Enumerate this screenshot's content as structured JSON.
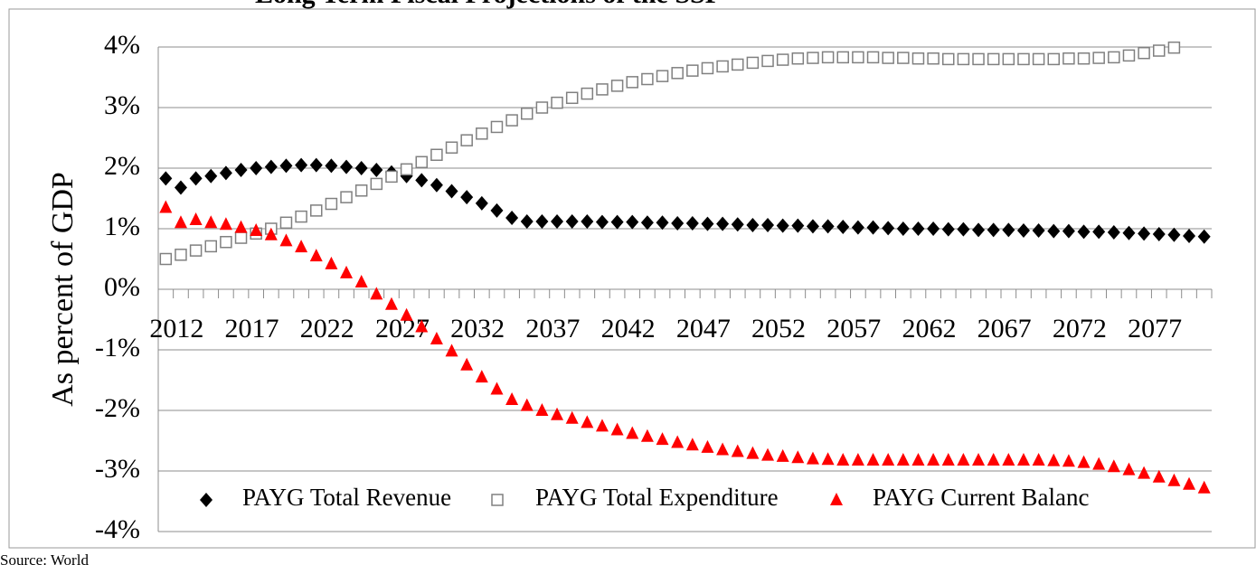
{
  "chart_data": {
    "type": "line",
    "title": "Long Term Fiscal Projections of the SSF",
    "source": "Source: World",
    "ylabel": "As percent of GDP",
    "categories": [
      "2012",
      null,
      null,
      null,
      null,
      "2017",
      null,
      null,
      null,
      null,
      "2022",
      null,
      null,
      null,
      null,
      "2027",
      null,
      null,
      null,
      null,
      "2032",
      null,
      null,
      null,
      null,
      "2037",
      null,
      null,
      null,
      null,
      "2042",
      null,
      null,
      null,
      null,
      "2047",
      null,
      null,
      null,
      null,
      "2052",
      null,
      null,
      null,
      null,
      "2057",
      null,
      null,
      null,
      null,
      "2062",
      null,
      null,
      null,
      null,
      "2067",
      null,
      null,
      null,
      null,
      "2072",
      null,
      null,
      null,
      null,
      "2077",
      null,
      null,
      null,
      null
    ],
    "ylim": [
      -4,
      4
    ],
    "yticks": [
      {
        "value": -4,
        "label": "-4%"
      },
      {
        "value": -3,
        "label": "-3%"
      },
      {
        "value": -2,
        "label": "-2%"
      },
      {
        "value": -1,
        "label": "-1%"
      },
      {
        "value": 0,
        "label": "0%"
      },
      {
        "value": 1,
        "label": "1%"
      },
      {
        "value": 2,
        "label": "2%"
      },
      {
        "value": 3,
        "label": "3%"
      },
      {
        "value": 4,
        "label": "4%"
      }
    ],
    "grid": true,
    "legend": "bottom",
    "series": [
      {
        "name": "PAYG Total Revenue",
        "color": "#000000",
        "marker": "diamond",
        "values": [
          1.83,
          1.68,
          1.83,
          1.87,
          1.92,
          1.97,
          2.0,
          2.02,
          2.04,
          2.05,
          2.05,
          2.04,
          2.02,
          2.0,
          1.97,
          1.93,
          1.87,
          1.8,
          1.72,
          1.62,
          1.52,
          1.42,
          1.3,
          1.18,
          1.12,
          1.12,
          1.12,
          1.12,
          1.12,
          1.11,
          1.11,
          1.11,
          1.1,
          1.1,
          1.09,
          1.09,
          1.08,
          1.08,
          1.07,
          1.06,
          1.06,
          1.05,
          1.05,
          1.04,
          1.04,
          1.03,
          1.02,
          1.02,
          1.01,
          1.0,
          1.0,
          1.0,
          0.99,
          0.99,
          0.98,
          0.98,
          0.98,
          0.97,
          0.97,
          0.96,
          0.96,
          0.95,
          0.95,
          0.94,
          0.93,
          0.92,
          0.91,
          0.9,
          0.88,
          0.87
        ]
      },
      {
        "name": "PAYG Total Expenditure",
        "color": "#808080",
        "marker": "square",
        "values": [
          0.5,
          0.57,
          0.64,
          0.71,
          0.78,
          0.85,
          0.92,
          1.0,
          1.1,
          1.2,
          1.3,
          1.41,
          1.52,
          1.63,
          1.74,
          1.86,
          1.98,
          2.1,
          2.22,
          2.34,
          2.46,
          2.57,
          2.68,
          2.79,
          2.9,
          3.0,
          3.08,
          3.16,
          3.23,
          3.3,
          3.36,
          3.42,
          3.47,
          3.52,
          3.57,
          3.61,
          3.65,
          3.68,
          3.71,
          3.74,
          3.77,
          3.79,
          3.81,
          3.82,
          3.83,
          3.83,
          3.83,
          3.83,
          3.82,
          3.82,
          3.81,
          3.81,
          3.8,
          3.8,
          3.8,
          3.8,
          3.8,
          3.8,
          3.8,
          3.8,
          3.81,
          3.81,
          3.82,
          3.83,
          3.86,
          3.9,
          3.94,
          3.99,
          null,
          null
        ]
      },
      {
        "name": "PAYG Current Balanc",
        "color": "#ff0000",
        "marker": "triangle",
        "values": [
          1.35,
          1.1,
          1.15,
          1.1,
          1.07,
          1.02,
          0.97,
          0.9,
          0.8,
          0.7,
          0.55,
          0.42,
          0.27,
          0.12,
          -0.08,
          -0.25,
          -0.43,
          -0.62,
          -0.82,
          -1.02,
          -1.25,
          -1.45,
          -1.65,
          -1.82,
          -1.92,
          -2.0,
          -2.07,
          -2.13,
          -2.2,
          -2.26,
          -2.32,
          -2.38,
          -2.43,
          -2.48,
          -2.53,
          -2.57,
          -2.61,
          -2.65,
          -2.68,
          -2.71,
          -2.74,
          -2.76,
          -2.78,
          -2.8,
          -2.81,
          -2.82,
          -2.82,
          -2.82,
          -2.82,
          -2.82,
          -2.82,
          -2.82,
          -2.82,
          -2.82,
          -2.82,
          -2.82,
          -2.82,
          -2.82,
          -2.82,
          -2.83,
          -2.84,
          -2.86,
          -2.89,
          -2.93,
          -2.98,
          -3.04,
          -3.1,
          -3.16,
          -3.22,
          -3.28
        ]
      }
    ]
  }
}
